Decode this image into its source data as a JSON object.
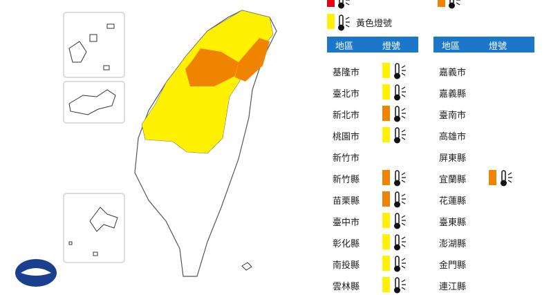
{
  "legend": [
    {
      "color": "#e60012"
    },
    {
      "color": "#f08300"
    },
    {
      "color": "#fff100",
      "label": "黃色燈號"
    }
  ],
  "tables": [
    {
      "header": [
        "地區",
        "燈號"
      ],
      "rows": [
        {
          "region": "基隆市",
          "color": "#fff100"
        },
        {
          "region": "臺北市",
          "color": "#fff100"
        },
        {
          "region": "新北市",
          "color": "#f08300"
        },
        {
          "region": "桃園市",
          "color": "#fff100"
        },
        {
          "region": "新竹市",
          "color": null
        },
        {
          "region": "新竹縣",
          "color": "#f08300"
        },
        {
          "region": "苗栗縣",
          "color": "#f08300"
        },
        {
          "region": "臺中市",
          "color": "#fff100"
        },
        {
          "region": "彰化縣",
          "color": "#fff100"
        },
        {
          "region": "南投縣",
          "color": "#fff100"
        },
        {
          "region": "雲林縣",
          "color": "#fff100"
        }
      ]
    },
    {
      "header": [
        "地區",
        "燈號"
      ],
      "rows": [
        {
          "region": "嘉義市",
          "color": null
        },
        {
          "region": "嘉義縣",
          "color": null
        },
        {
          "region": "臺南市",
          "color": null
        },
        {
          "region": "高雄市",
          "color": null
        },
        {
          "region": "屏東縣",
          "color": null
        },
        {
          "region": "宜蘭縣",
          "color": "#f08300"
        },
        {
          "region": "花蓮縣",
          "color": null
        },
        {
          "region": "臺東縣",
          "color": null
        },
        {
          "region": "澎湖縣",
          "color": null
        },
        {
          "region": "金門縣",
          "color": null
        },
        {
          "region": "連江縣",
          "color": null
        }
      ]
    }
  ]
}
